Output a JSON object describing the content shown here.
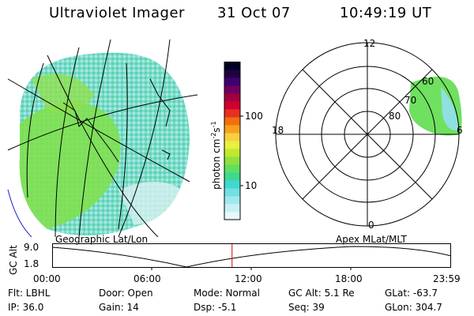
{
  "header": {
    "title": "Ultraviolet Imager",
    "date": "31 Oct 07",
    "time": "10:49:19 UT"
  },
  "colorbar": {
    "label": "photon cm",
    "label_exp1": "-2",
    "label_mid": "s",
    "label_exp2": "-1",
    "tick_100": "100",
    "tick_10": "10",
    "colors": [
      "#e8f8fc",
      "#c8f0f4",
      "#a0e8ec",
      "#70e0e0",
      "#40d8d0",
      "#40d890",
      "#60e060",
      "#90e040",
      "#c0e830",
      "#e8f040",
      "#f8d040",
      "#f8a020",
      "#f07010",
      "#e83020",
      "#d00030",
      "#a00040",
      "#700060",
      "#400070",
      "#200040",
      "#000020"
    ]
  },
  "polar": {
    "label_12": "12",
    "label_18": "18",
    "label_6": "6",
    "label_0": "0",
    "ring_60": "60",
    "ring_70": "70",
    "ring_80": "80"
  },
  "panel_labels": {
    "left": "Geographic Lat/Lon",
    "right": "Apex  MLat/MLT"
  },
  "altitude": {
    "axis_label": "GC Alt",
    "y_top": "9.0",
    "y_bottom": "1.8",
    "x_ticks": [
      "00:00",
      "06:00",
      "12:00",
      "18:00",
      "23:59"
    ],
    "marker_fraction": 0.451,
    "marker_color": "#e00000"
  },
  "info": {
    "flt": "Flt: LBHL",
    "ip": "IP: 36.0",
    "door": "Door: Open",
    "gain": "Gain: 14",
    "mode": "Mode: Normal",
    "dsp": "Dsp:    -5.1",
    "gc_alt": "GC Alt: 5.1 Re",
    "seq": "Seq: 39",
    "glat": "GLat:  -63.7",
    "glon": "GLon: 304.7"
  }
}
